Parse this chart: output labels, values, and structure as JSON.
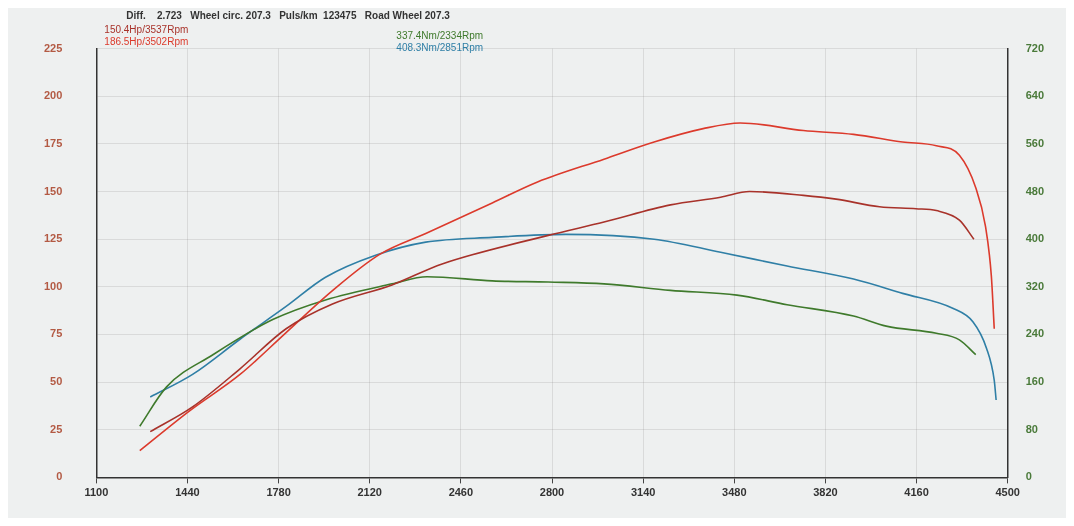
{
  "chart_data": {
    "type": "line",
    "title": "Diff.    2.723   Wheel circ. 207.3   Puls/km  123475   Road Wheel 207.3",
    "xlim": [
      1100,
      4500
    ],
    "xticks": [
      1100,
      1440,
      1780,
      2120,
      2460,
      2800,
      3140,
      3480,
      3820,
      4160,
      4500
    ],
    "ylim": [
      0,
      225
    ],
    "yticks": [
      0,
      25,
      50,
      75,
      100,
      125,
      150,
      175,
      200,
      225
    ],
    "y2lim": [
      0,
      720
    ],
    "y2ticks": [
      0,
      80,
      160,
      240,
      320,
      400,
      480,
      560,
      640,
      720
    ],
    "grid": true,
    "legend": false,
    "marker": "none",
    "line_style": "solid",
    "series": [
      {
        "name": "150.4Hp/3537Rpm",
        "color": "#a8322a",
        "axis": "y",
        "x": [
          1301,
          1459,
          1636,
          1808,
          1981,
          2203,
          2390,
          2786,
          2994,
          3242,
          3429,
          3537,
          3738,
          3860,
          4022,
          4158,
          4234,
          4320,
          4374
        ],
        "values": [
          24,
          37,
          57,
          78,
          91,
          101,
          112,
          127,
          134,
          143,
          147,
          150,
          148,
          146,
          142,
          141,
          140,
          135,
          125
        ]
      },
      {
        "name": "186.5Hp/3502Rpm",
        "color": "#dc3a2c",
        "axis": "y",
        "x": [
          1262,
          1449,
          1636,
          1808,
          1981,
          2157,
          2329,
          2577,
          2746,
          2994,
          3181,
          3364,
          3502,
          3738,
          3925,
          4108,
          4234,
          4320,
          4381,
          4417,
          4439,
          4450
        ],
        "values": [
          14,
          35,
          54,
          76,
          98,
          117,
          128,
          144,
          155,
          167,
          176,
          183,
          186,
          182,
          180,
          176,
          174,
          169,
          152,
          132,
          106,
          78
        ]
      },
      {
        "name": "337.4Nm/2334Rpm",
        "color": "#3f7a2c",
        "axis": "y2",
        "x": [
          1262,
          1362,
          1535,
          1758,
          1955,
          2203,
          2334,
          2577,
          2786,
          2994,
          3242,
          3490,
          3677,
          3925,
          4047,
          4234,
          4320,
          4381
        ],
        "values": [
          86,
          152,
          206,
          265,
          298,
          325,
          337,
          330,
          328,
          325,
          314,
          306,
          290,
          271,
          254,
          242,
          231,
          206
        ]
      },
      {
        "name": "408.3Nm/2851Rpm",
        "color": "#2f7fa6",
        "axis": "y2",
        "x": [
          1301,
          1459,
          1636,
          1808,
          1955,
          2142,
          2329,
          2577,
          2851,
          3181,
          3429,
          3677,
          3925,
          4108,
          4295,
          4371,
          4421,
          4450,
          4457
        ],
        "values": [
          135,
          173,
          232,
          287,
          336,
          373,
          395,
          403,
          408,
          400,
          378,
          355,
          333,
          309,
          284,
          261,
          217,
          163,
          130
        ]
      }
    ]
  }
}
